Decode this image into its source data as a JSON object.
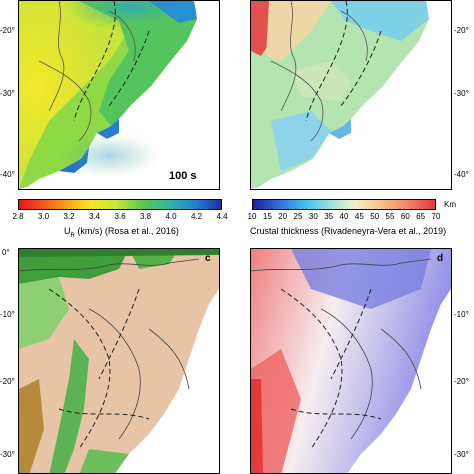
{
  "panels": {
    "a": {
      "period_label": "100 s"
    },
    "b": {},
    "c": {
      "letter": "c"
    },
    "d": {
      "letter": "d"
    }
  },
  "lat_ticks_top": [
    "-20°",
    "-30°",
    "-40°"
  ],
  "lat_ticks_bottom": [
    "0°",
    "-10°",
    "-20°",
    "-30°"
  ],
  "colorbar_a": {
    "ticks": [
      "2.8",
      "3.0",
      "3.2",
      "3.4",
      "3.6",
      "3.8",
      "4.0",
      "4.2",
      "4.4"
    ],
    "label": "U",
    "label_sub": "R",
    "label_rest": "(km/s) (Rosa et al., 2016)"
  },
  "colorbar_b": {
    "ticks": [
      "10",
      "15",
      "20",
      "25",
      "30",
      "35",
      "40",
      "45",
      "50",
      "55",
      "60",
      "65",
      "70"
    ],
    "unit": "Km",
    "label": "Crustal thickness (Rivadeneyra-Vera et al., 2019)"
  },
  "colors": {
    "ur_scale": [
      "#e8141a",
      "#f37f1b",
      "#f5e42a",
      "#c7e93a",
      "#56c553",
      "#2fb6a7",
      "#1f7fd1",
      "#1a2fa6"
    ],
    "crust_scale": [
      "#1a1f9c",
      "#2f6fe0",
      "#46c3f0",
      "#a6e6d6",
      "#f1f1c8",
      "#f5c48a",
      "#f38a6b",
      "#e03a3a"
    ]
  }
}
